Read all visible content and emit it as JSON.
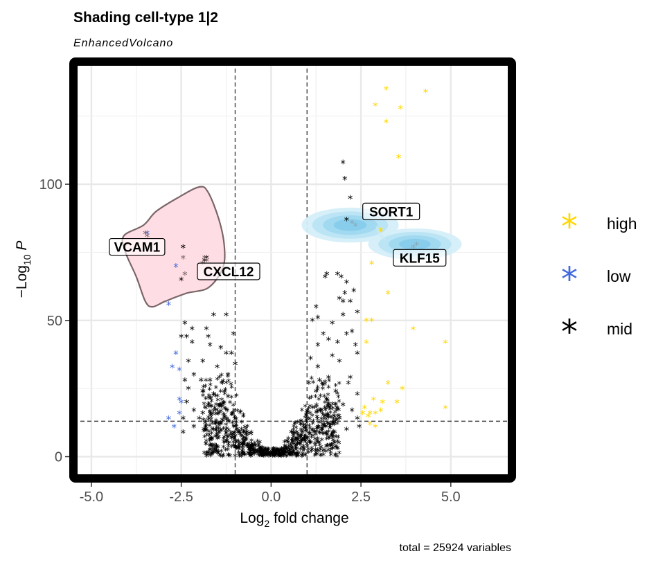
{
  "chart_data": {
    "type": "scatter",
    "title": "Shading cell-type 1|2",
    "subtitle": "EnhancedVolcano",
    "xlabel": "Log2 fold change",
    "ylabel": "−Log10 P",
    "xlabel_main": "Log",
    "xlabel_sub": "2",
    "xlabel_rest": " fold change",
    "ylabel_main": "−Log",
    "ylabel_sub": "10",
    "ylabel_rest": " P",
    "caption": "total = 25924 variables",
    "xlim": [
      -5.5,
      6.7
    ],
    "ylim": [
      -8,
      145
    ],
    "x_ticks": [
      -5.0,
      -2.5,
      0.0,
      2.5,
      5.0
    ],
    "x_tick_labels": [
      "-5.0",
      "-2.5",
      "0.0",
      "2.5",
      "5.0"
    ],
    "y_ticks": [
      0,
      50,
      100
    ],
    "y_tick_labels": [
      "0",
      "50",
      "100"
    ],
    "grid": true,
    "fc_cutoff": [
      -1,
      1
    ],
    "p_cutoff": 13,
    "legend": {
      "position": "right",
      "entries": [
        {
          "label": "high",
          "color": "#FFD700"
        },
        {
          "label": "low",
          "color": "#4169E1"
        },
        {
          "label": "mid",
          "color": "#000000"
        }
      ]
    },
    "series": [
      {
        "name": "high",
        "color": "#FFD700",
        "points": [
          [
            3.2,
            135
          ],
          [
            4.3,
            134
          ],
          [
            2.9,
            129
          ],
          [
            3.6,
            128
          ],
          [
            3.2,
            123
          ],
          [
            3.55,
            110
          ],
          [
            3.05,
            83
          ],
          [
            2.8,
            71
          ],
          [
            3.25,
            60
          ],
          [
            2.65,
            50
          ],
          [
            2.8,
            50
          ],
          [
            3.95,
            47
          ],
          [
            4.85,
            42
          ],
          [
            2.65,
            42
          ],
          [
            3.25,
            27
          ],
          [
            3.65,
            25
          ],
          [
            2.85,
            21
          ],
          [
            3.1,
            20
          ],
          [
            3.5,
            20
          ],
          [
            2.6,
            18
          ],
          [
            3.05,
            17
          ],
          [
            2.75,
            16
          ],
          [
            2.9,
            16
          ],
          [
            2.7,
            15
          ],
          [
            4.85,
            18
          ],
          [
            2.75,
            12
          ],
          [
            2.9,
            11
          ],
          [
            2.55,
            16
          ]
        ]
      },
      {
        "name": "low",
        "color": "#4169E1",
        "points": [
          [
            -3.45,
            82
          ],
          [
            -2.65,
            70
          ],
          [
            -2.85,
            56
          ],
          [
            -2.65,
            38
          ],
          [
            -2.75,
            33
          ],
          [
            -2.55,
            32
          ],
          [
            -2.55,
            21
          ],
          [
            -2.5,
            20
          ],
          [
            -2.55,
            16
          ],
          [
            -2.85,
            14
          ],
          [
            -2.7,
            11
          ]
        ]
      },
      {
        "name": "mid",
        "color": "#000000",
        "points": [
          [
            2.0,
            108
          ],
          [
            2.05,
            102
          ],
          [
            2.2,
            95
          ],
          [
            2.1,
            87
          ],
          [
            -2.45,
            77
          ],
          [
            -1.8,
            73
          ],
          [
            -1.85,
            72
          ],
          [
            -2.5,
            65
          ],
          [
            1.85,
            67
          ],
          [
            1.5,
            66
          ],
          [
            1.55,
            67
          ],
          [
            1.95,
            66
          ],
          [
            2.1,
            64
          ],
          [
            2.3,
            61
          ],
          [
            2.05,
            60
          ],
          [
            1.9,
            58
          ],
          [
            2.2,
            57
          ],
          [
            2.0,
            57
          ],
          [
            -1.6,
            52
          ],
          [
            -1.25,
            52
          ],
          [
            1.3,
            51
          ],
          [
            1.15,
            50
          ],
          [
            1.7,
            49
          ],
          [
            -2.4,
            49
          ],
          [
            -1.8,
            47
          ],
          [
            -2.2,
            47
          ],
          [
            -2.35,
            44
          ],
          [
            -1.75,
            44
          ],
          [
            -2.5,
            44
          ],
          [
            2.25,
            46
          ],
          [
            2.1,
            45
          ],
          [
            1.45,
            45
          ],
          [
            -2.2,
            42
          ],
          [
            -1.7,
            41
          ],
          [
            1.85,
            42
          ],
          [
            2.35,
            41
          ],
          [
            1.3,
            41
          ],
          [
            -1.25,
            38
          ],
          [
            -1.1,
            38
          ],
          [
            2.4,
            38
          ],
          [
            1.1,
            36
          ],
          [
            -1.9,
            35
          ],
          [
            1.9,
            35
          ],
          [
            -1.5,
            33
          ],
          [
            -2.15,
            30
          ],
          [
            -1.2,
            30
          ],
          [
            -1.95,
            28
          ],
          [
            -2.4,
            28
          ],
          [
            -1.7,
            28
          ],
          [
            -1.35,
            27
          ],
          [
            1.35,
            28
          ],
          [
            1.6,
            29
          ],
          [
            2.2,
            29
          ],
          [
            -2.3,
            25
          ],
          [
            -1.9,
            24
          ],
          [
            -1.6,
            23
          ],
          [
            -1.2,
            22
          ],
          [
            1.25,
            24
          ],
          [
            1.8,
            24
          ],
          [
            2.4,
            23
          ],
          [
            -2.35,
            20
          ],
          [
            -1.75,
            19
          ],
          [
            -1.4,
            19
          ],
          [
            -2.15,
            17
          ],
          [
            -1.9,
            16
          ],
          [
            -2.45,
            14
          ],
          [
            -2.0,
            14
          ],
          [
            -2.45,
            9
          ],
          [
            -2.15,
            11
          ],
          [
            -1.6,
            10
          ],
          [
            2.0,
            19
          ],
          [
            2.25,
            17
          ],
          [
            1.9,
            14
          ],
          [
            2.4,
            14
          ],
          [
            2.1,
            10
          ],
          [
            2.45,
            11
          ],
          [
            1.15,
            18
          ],
          [
            1.55,
            21
          ],
          [
            1.05,
            27
          ],
          [
            1.3,
            33
          ],
          [
            1.7,
            37
          ],
          [
            1.6,
            43
          ],
          [
            2.0,
            52
          ],
          [
            1.25,
            55
          ],
          [
            2.4,
            53
          ],
          [
            -1.05,
            45
          ],
          [
            -1.4,
            40
          ],
          [
            -1.0,
            34
          ],
          [
            -1.3,
            24
          ],
          [
            -2.3,
            35
          ],
          [
            2.15,
            27
          ]
        ]
      }
    ],
    "highlight": {
      "pink_region": {
        "fill": "#FFDDE4",
        "stroke": "#7A6668",
        "polygon": [
          [
            -3.55,
            85
          ],
          [
            -3.2,
            90
          ],
          [
            -2.6,
            95
          ],
          [
            -2.0,
            99
          ],
          [
            -1.75,
            97
          ],
          [
            -1.45,
            87
          ],
          [
            -1.3,
            77
          ],
          [
            -1.35,
            69
          ],
          [
            -1.75,
            62
          ],
          [
            -2.35,
            60
          ],
          [
            -2.95,
            57
          ],
          [
            -3.3,
            55
          ],
          [
            -3.5,
            57
          ],
          [
            -3.75,
            66
          ],
          [
            -4.05,
            75
          ],
          [
            -4.1,
            81
          ]
        ],
        "points": [
          [
            -3.5,
            82
          ],
          [
            -3.45,
            81
          ],
          [
            -2.45,
            73
          ],
          [
            -1.85,
            73
          ],
          [
            -1.8,
            72
          ],
          [
            -1.9,
            71
          ],
          [
            -2.4,
            67
          ]
        ]
      },
      "blue_densities": [
        {
          "cx": 2.2,
          "cy": 85,
          "rx": 1.35,
          "ry": 4.0
        },
        {
          "cx": 4.0,
          "cy": 78,
          "rx": 1.3,
          "ry": 3.6
        }
      ],
      "blue_density_points": [
        [
          2.25,
          86
        ],
        [
          2.35,
          85
        ],
        [
          4.05,
          78
        ],
        [
          3.95,
          77
        ]
      ]
    },
    "labels": [
      {
        "text": "VCAM1",
        "x": -4.5,
        "y": 77,
        "fill": "#FFFFFF",
        "text_color": "#000000"
      },
      {
        "text": "CXCL12",
        "x": -2.05,
        "y": 68,
        "fill": "#FFFFFF",
        "text_color": "#000000"
      },
      {
        "text": "SORT1",
        "x": 2.55,
        "y": 90,
        "fill": "#FFFFFF",
        "text_color": "#000000"
      },
      {
        "text": "KLF15",
        "x": 3.4,
        "y": 73,
        "fill": "#FFFFFF",
        "text_color": "#000000"
      }
    ]
  }
}
